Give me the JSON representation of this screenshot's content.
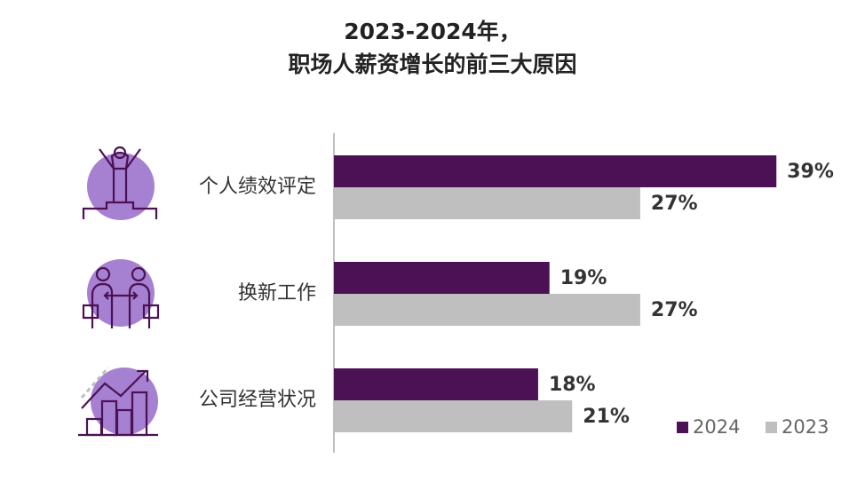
{
  "chart_data": {
    "type": "bar",
    "orientation": "horizontal",
    "title": [
      "2023-2024年，",
      "职场人薪资增长的前三大原因"
    ],
    "categories": [
      "个人绩效评定",
      "换新工作",
      "公司经营状况"
    ],
    "series": [
      {
        "name": "2024",
        "color": "#4b1154",
        "values": [
          39,
          19,
          18
        ],
        "value_labels": [
          "39%",
          "19%",
          "18%"
        ]
      },
      {
        "name": "2023",
        "color": "#bfbfbf",
        "values": [
          27,
          27,
          21
        ],
        "value_labels": [
          "27%",
          "27%",
          "21%"
        ]
      }
    ],
    "xlim": [
      0,
      40
    ],
    "legend": "bottom-right"
  }
}
